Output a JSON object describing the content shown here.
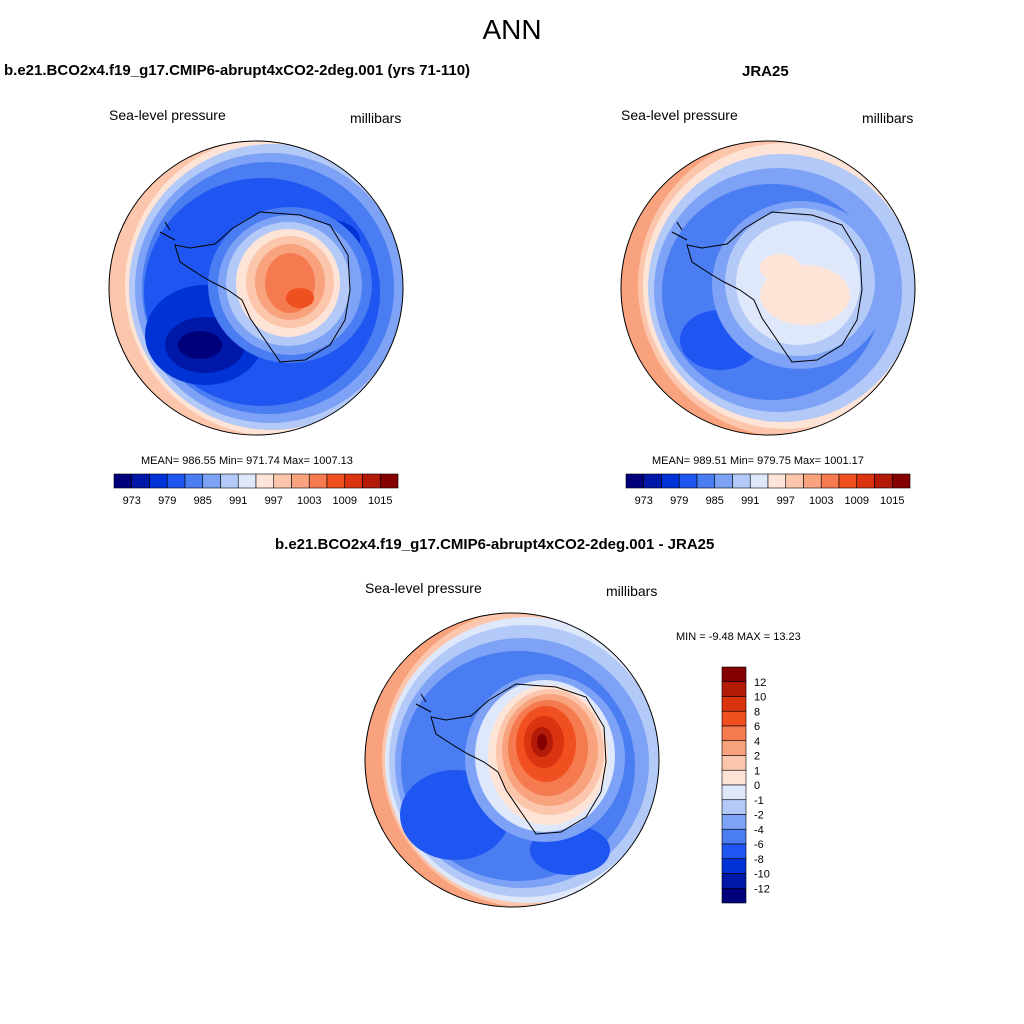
{
  "title": "ANN",
  "panels": [
    {
      "id": "model",
      "title": "b.e21.BCO2x4.f19_g17.CMIP6-abrupt4xCO2-2deg.001 (yrs 71-110)",
      "left_label": "Sea-level pressure",
      "right_label": "millibars",
      "stats": "MEAN= 986.55  Min= 971.74  Max= 1007.13"
    },
    {
      "id": "obs",
      "title": "JRA25",
      "left_label": "Sea-level pressure",
      "right_label": "millibars",
      "stats": "MEAN= 989.51  Min= 979.75  Max= 1001.17"
    },
    {
      "id": "diff",
      "title": "b.e21.BCO2x4.f19_g17.CMIP6-abrupt4xCO2-2deg.001 - JRA25",
      "left_label": "Sea-level pressure",
      "right_label": "millibars",
      "stats": "MIN =  -9.48 MAX =  13.23"
    }
  ],
  "colorbar_main": {
    "ticks": [
      "973",
      "979",
      "985",
      "991",
      "997",
      "1003",
      "1009",
      "1015"
    ],
    "colors": [
      "#00007a",
      "#0018a8",
      "#0033d6",
      "#1f55f0",
      "#4a7cf2",
      "#7ea2f5",
      "#b3c9f7",
      "#dfe8fb",
      "#fde4d6",
      "#fbc6ab",
      "#f9a27e",
      "#f67a4f",
      "#f04f20",
      "#d9330f",
      "#b31a08",
      "#840000"
    ]
  },
  "colorbar_diff": {
    "ticks": [
      "12",
      "10",
      "8",
      "6",
      "4",
      "2",
      "1",
      "0",
      "-1",
      "-2",
      "-4",
      "-6",
      "-8",
      "-10",
      "-12"
    ],
    "colors": [
      "#840000",
      "#b31a08",
      "#d9330f",
      "#f04f20",
      "#f67a4f",
      "#f9a27e",
      "#fbc6ab",
      "#fde4d6",
      "#dfe8fb",
      "#b3c9f7",
      "#7ea2f5",
      "#4a7cf2",
      "#1f55f0",
      "#0033d6",
      "#0018a8",
      "#00007a"
    ]
  }
}
